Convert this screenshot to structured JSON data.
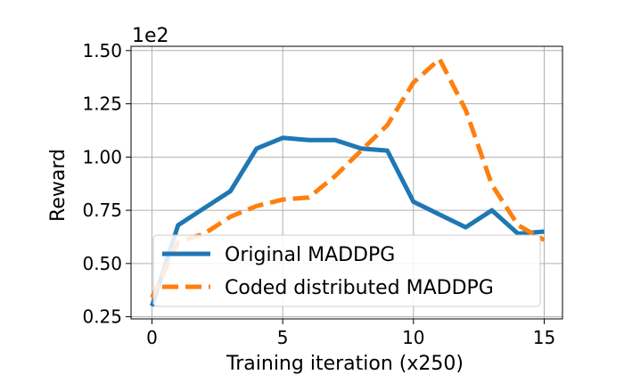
{
  "chart_data": {
    "type": "line",
    "xlabel": "Training iteration (x250)",
    "ylabel": "Reward",
    "scale_label": "1e2",
    "xlim": [
      -0.8,
      15.7
    ],
    "ylim": [
      0.24,
      1.52
    ],
    "xticks": [
      0,
      5,
      10,
      15
    ],
    "xtick_labels": [
      "0",
      "5",
      "10",
      "15"
    ],
    "yticks": [
      0.25,
      0.5,
      0.75,
      1.0,
      1.25,
      1.5
    ],
    "ytick_labels": [
      "0.25",
      "0.50",
      "0.75",
      "1.00",
      "1.25",
      "1.50"
    ],
    "grid": true,
    "legend_position": "lower-right",
    "series": [
      {
        "name": "Original MADDPG",
        "color": "#1f77b4",
        "style": "solid",
        "x": [
          0,
          1,
          2,
          3,
          4,
          5,
          6,
          7,
          8,
          9,
          10,
          11,
          12,
          13,
          14,
          15
        ],
        "y": [
          0.3,
          0.68,
          0.76,
          0.84,
          1.04,
          1.09,
          1.08,
          1.08,
          1.04,
          1.03,
          0.79,
          0.73,
          0.67,
          0.75,
          0.64,
          0.65
        ]
      },
      {
        "name": "Coded distributed MADDPG",
        "color": "#ff7f0e",
        "style": "dashed",
        "x": [
          0,
          1,
          2,
          3,
          4,
          5,
          6,
          7,
          8,
          9,
          10,
          11,
          12,
          13,
          14,
          15
        ],
        "y": [
          0.34,
          0.6,
          0.64,
          0.72,
          0.77,
          0.8,
          0.81,
          0.91,
          1.03,
          1.15,
          1.35,
          1.46,
          1.22,
          0.87,
          0.68,
          0.61
        ]
      }
    ]
  }
}
